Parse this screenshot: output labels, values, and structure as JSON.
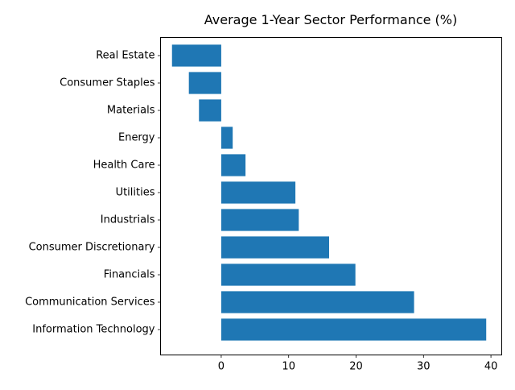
{
  "chart_data": {
    "type": "bar",
    "orientation": "horizontal",
    "title": "Average 1-Year Sector Performance (%)",
    "xlabel": "",
    "ylabel": "",
    "categories": [
      "Real Estate",
      "Consumer Staples",
      "Materials",
      "Energy",
      "Health Care",
      "Utilities",
      "Industrials",
      "Consumer Discretionary",
      "Financials",
      "Communication Services",
      "Information Technology"
    ],
    "values": [
      -7.3,
      -4.8,
      -3.3,
      1.7,
      3.6,
      11.0,
      11.5,
      16.0,
      19.9,
      28.6,
      39.3
    ],
    "xlim": [
      -9.0,
      41.6
    ],
    "xticks": [
      0,
      10,
      20,
      30,
      40
    ],
    "xtick_labels": [
      "0",
      "10",
      "20",
      "30",
      "40"
    ],
    "grid": false,
    "bar_color": "#1f77b4"
  }
}
